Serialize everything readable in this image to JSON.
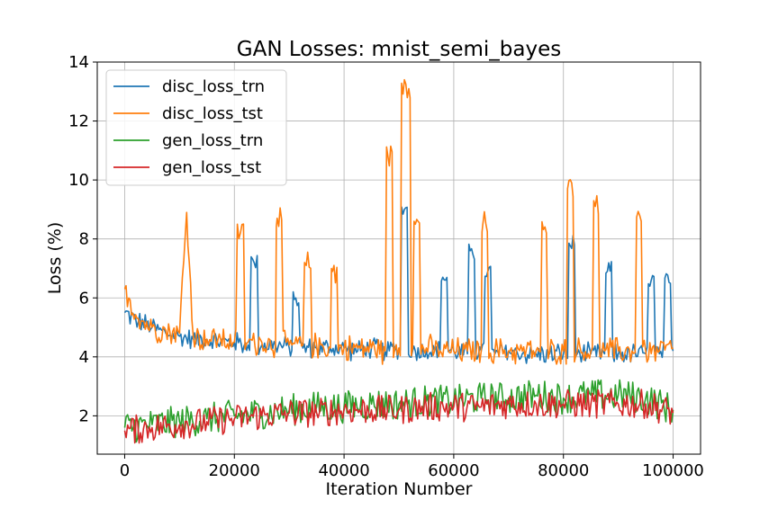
{
  "chart_data": {
    "type": "line",
    "title": "GAN Losses: mnist_semi_bayes",
    "xlabel": "Iteration Number",
    "ylabel": "Loss (%)",
    "xlim": [
      -5000,
      105000
    ],
    "ylim": [
      0.7,
      14
    ],
    "xticks": [
      0,
      20000,
      40000,
      60000,
      80000,
      100000
    ],
    "xtick_labels": [
      "0",
      "20000",
      "40000",
      "60000",
      "80000",
      "100000"
    ],
    "yticks": [
      2,
      4,
      6,
      8,
      10,
      12,
      14
    ],
    "ytick_labels": [
      "2",
      "4",
      "6",
      "8",
      "10",
      "12",
      "14"
    ],
    "grid": true,
    "legend": "upper-left",
    "series": [
      {
        "name": "disc_loss_trn",
        "color": "#1f77b4",
        "x": [
          0,
          2500,
          5000,
          7500,
          10000,
          12500,
          15000,
          17500,
          20000,
          22500,
          23600,
          25000,
          27500,
          30000,
          31200,
          32500,
          35000,
          37500,
          40000,
          42500,
          45000,
          47500,
          50000,
          51000,
          52500,
          55000,
          57500,
          58000,
          60000,
          62500,
          63000,
          65000,
          66200,
          67500,
          70000,
          72500,
          75000,
          77500,
          80000,
          82000,
          82500,
          85000,
          87500,
          88000,
          90000,
          92500,
          95000,
          96000,
          97500,
          99500,
          100000
        ],
        "y": [
          5.5,
          5.2,
          5.0,
          4.8,
          4.7,
          4.6,
          4.6,
          4.5,
          4.5,
          4.4,
          7.2,
          4.4,
          4.4,
          4.3,
          6.0,
          4.3,
          4.3,
          4.3,
          4.3,
          4.2,
          4.3,
          4.2,
          4.3,
          9.0,
          4.2,
          4.2,
          4.2,
          6.7,
          4.2,
          4.1,
          7.6,
          4.2,
          6.9,
          4.1,
          4.2,
          4.1,
          4.1,
          4.1,
          4.1,
          7.8,
          4.1,
          4.1,
          4.1,
          6.9,
          4.1,
          4.1,
          4.1,
          6.6,
          4.1,
          6.5,
          4.2
        ]
      },
      {
        "name": "disc_loss_tst",
        "color": "#ff7f0e",
        "x": [
          0,
          2500,
          5000,
          7500,
          10000,
          11300,
          12500,
          15000,
          17500,
          20000,
          21100,
          22500,
          25000,
          27500,
          27800,
          30000,
          32500,
          33100,
          35000,
          37500,
          37900,
          40000,
          42500,
          45000,
          47500,
          48000,
          50000,
          51000,
          51800,
          52500,
          53000,
          55000,
          57500,
          60000,
          62500,
          65000,
          65300,
          67500,
          70000,
          72500,
          75000,
          76900,
          77500,
          80000,
          81500,
          82500,
          85000,
          85800,
          87500,
          90000,
          92500,
          93900,
          95000,
          97500,
          100000
        ],
        "y": [
          6.3,
          5.3,
          5.0,
          4.9,
          4.8,
          8.9,
          4.7,
          4.6,
          4.6,
          4.5,
          8.2,
          4.5,
          4.5,
          4.4,
          8.7,
          4.4,
          4.4,
          7.1,
          4.4,
          4.3,
          6.9,
          4.3,
          4.3,
          4.3,
          4.2,
          10.8,
          4.3,
          13.4,
          13.1,
          4.3,
          8.5,
          4.3,
          4.2,
          4.2,
          4.2,
          4.2,
          8.5,
          4.2,
          4.2,
          4.2,
          4.2,
          8.2,
          4.2,
          4.2,
          9.9,
          4.2,
          4.2,
          9.1,
          4.2,
          4.2,
          4.2,
          8.8,
          4.2,
          4.2,
          4.3
        ]
      },
      {
        "name": "gen_loss_trn",
        "color": "#2ca02c",
        "x": [
          0,
          5000,
          10000,
          15000,
          20000,
          25000,
          30000,
          35000,
          40000,
          45000,
          50000,
          55000,
          60000,
          65000,
          70000,
          75000,
          80000,
          85000,
          90000,
          95000,
          100000
        ],
        "y": [
          1.6,
          1.7,
          1.8,
          1.9,
          2.0,
          2.1,
          2.2,
          2.3,
          2.3,
          2.4,
          2.4,
          2.5,
          2.5,
          2.6,
          2.6,
          2.7,
          2.6,
          2.7,
          2.7,
          2.6,
          2.2
        ]
      },
      {
        "name": "gen_loss_tst",
        "color": "#d62728",
        "x": [
          0,
          5000,
          10000,
          15000,
          20000,
          25000,
          30000,
          35000,
          40000,
          45000,
          50000,
          55000,
          60000,
          65000,
          70000,
          75000,
          80000,
          85000,
          90000,
          95000,
          100000
        ],
        "y": [
          1.5,
          1.6,
          1.7,
          1.8,
          1.9,
          2.0,
          2.1,
          2.1,
          2.2,
          2.2,
          2.2,
          2.3,
          2.3,
          2.3,
          2.4,
          2.4,
          2.4,
          2.4,
          2.4,
          2.4,
          2.1
        ]
      }
    ]
  }
}
